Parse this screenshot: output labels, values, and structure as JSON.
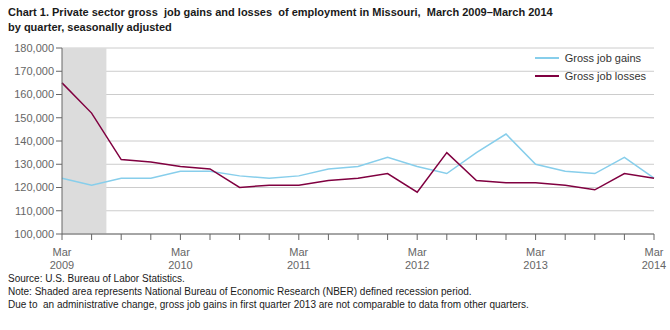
{
  "chart_data": {
    "type": "line",
    "title": "Chart 1. Private sector gross  job gains and losses  of employment in Missouri,  March 2009–March 2014\nby quarter, seasonally adjusted",
    "categories": [
      "Mar\n2009",
      null,
      null,
      null,
      "Mar\n2010",
      null,
      null,
      null,
      "Mar\n2011",
      null,
      null,
      null,
      "Mar\n2012",
      null,
      null,
      null,
      "Mar\n2013",
      null,
      null,
      null,
      "Mar\n2014"
    ],
    "series": [
      {
        "name": "Gross job gains",
        "color": "#87CEEB",
        "values": [
          124000,
          121000,
          124000,
          124000,
          127000,
          127000,
          125000,
          124000,
          125000,
          128000,
          129000,
          133000,
          129000,
          126000,
          135000,
          143000,
          130000,
          127000,
          126000,
          133000,
          124000
        ]
      },
      {
        "name": "Gross job losses",
        "color": "#800040",
        "values": [
          165000,
          152000,
          132000,
          131000,
          129000,
          128000,
          120000,
          121000,
          121000,
          123000,
          124000,
          126000,
          118000,
          135000,
          123000,
          122000,
          122000,
          121000,
          119000,
          126000,
          124000
        ]
      }
    ],
    "ylim": [
      100000,
      180000
    ],
    "yticks": [
      {
        "value": 100000,
        "label": "100,000"
      },
      {
        "value": 110000,
        "label": "110,000"
      },
      {
        "value": 120000,
        "label": "120,000"
      },
      {
        "value": 130000,
        "label": "130,000"
      },
      {
        "value": 140000,
        "label": "140,000"
      },
      {
        "value": 150000,
        "label": "150,000"
      },
      {
        "value": 160000,
        "label": "160,000"
      },
      {
        "value": 170000,
        "label": "170,000"
      },
      {
        "value": 180000,
        "label": "180,000"
      }
    ],
    "shade": {
      "start": 0,
      "end": 1.5,
      "color": "#DCDCDC"
    },
    "grid": true,
    "legend": "upper right",
    "source": "Source: U.S. Bureau of Labor Statistics.",
    "notes": [
      "Note: Shaded area represents National Bureau of Economic Research (NBER) defined recession period.",
      "Due to  an administrative change, gross job gains in first quarter 2013 are not comparable to data from other quarters."
    ]
  }
}
